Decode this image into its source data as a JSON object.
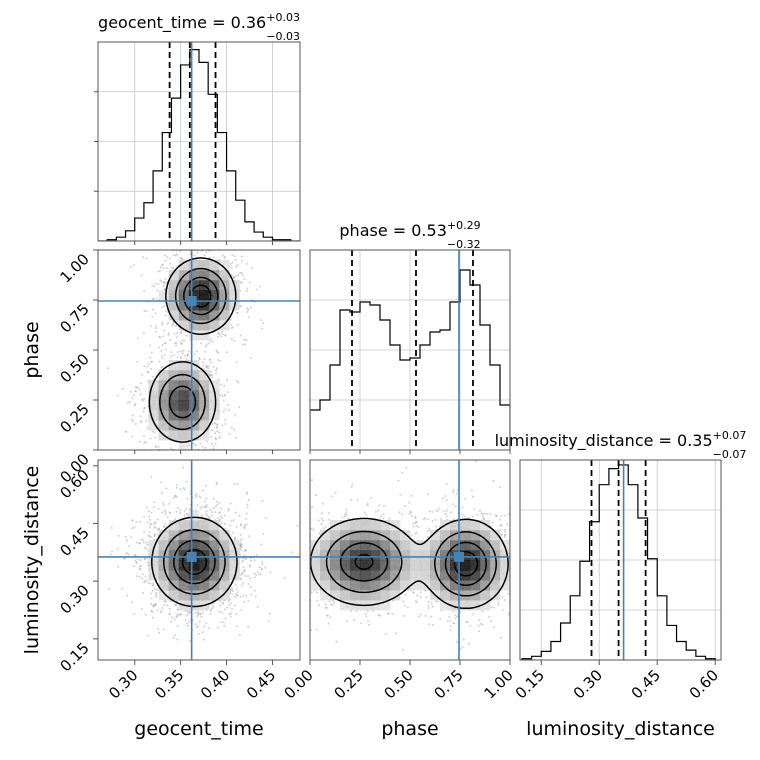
{
  "chart_data": {
    "type": "corner",
    "parameters": [
      "geocent_time",
      "phase",
      "luminosity_distance"
    ],
    "truth_color": "#4682b4",
    "quantile_style": "dashed",
    "grid": true,
    "marginals": [
      {
        "parameter": "geocent_time",
        "title_main": "geocent_time = 0.36",
        "title_plus": "+0.03",
        "title_minus": "−0.03",
        "range": [
          0.26,
          0.48
        ],
        "truth": 0.362,
        "quantiles": [
          0.338,
          0.36,
          0.388
        ],
        "hist_edges": [
          0.26,
          0.27,
          0.28,
          0.29,
          0.3,
          0.31,
          0.32,
          0.33,
          0.34,
          0.35,
          0.36,
          0.37,
          0.38,
          0.39,
          0.4,
          0.41,
          0.42,
          0.43,
          0.44,
          0.45,
          0.46,
          0.47,
          0.48
        ],
        "hist_counts": [
          0,
          1,
          3,
          8,
          18,
          30,
          55,
          85,
          112,
          138,
          150,
          140,
          115,
          85,
          55,
          32,
          15,
          7,
          3,
          1,
          1,
          0
        ],
        "hist_max": 156
      },
      {
        "parameter": "phase",
        "title_main": "phase = 0.53",
        "title_plus": "+0.29",
        "title_minus": "−0.32",
        "range": [
          0.0,
          1.0
        ],
        "truth": 0.745,
        "quantiles": [
          0.21,
          0.53,
          0.815
        ],
        "hist_edges": [
          0,
          0.05,
          0.1,
          0.15,
          0.2,
          0.25,
          0.3,
          0.35,
          0.4,
          0.45,
          0.5,
          0.55,
          0.6,
          0.65,
          0.7,
          0.75,
          0.8,
          0.85,
          0.9,
          0.95,
          1.0
        ],
        "hist_counts": [
          40,
          50,
          85,
          140,
          138,
          148,
          145,
          130,
          105,
          90,
          92,
          105,
          118,
          120,
          148,
          180,
          165,
          125,
          85,
          45
        ],
        "hist_max": 200
      },
      {
        "parameter": "luminosity_distance",
        "title_main": "luminosity_distance = 0.35",
        "title_plus": "+0.07",
        "title_minus": "−0.07",
        "range": [
          0.095,
          0.615
        ],
        "truth": 0.363,
        "quantiles": [
          0.28,
          0.35,
          0.42
        ],
        "hist_edges": [
          0.1,
          0.125,
          0.15,
          0.175,
          0.2,
          0.225,
          0.25,
          0.275,
          0.3,
          0.325,
          0.35,
          0.375,
          0.4,
          0.425,
          0.45,
          0.475,
          0.5,
          0.525,
          0.55,
          0.575,
          0.6
        ],
        "hist_counts": [
          1,
          3,
          7,
          15,
          30,
          52,
          80,
          112,
          142,
          155,
          158,
          142,
          115,
          82,
          52,
          28,
          15,
          8,
          3,
          1
        ],
        "hist_max": 162
      }
    ],
    "joint": [
      {
        "x": "geocent_time",
        "y": "phase",
        "truth": [
          0.362,
          0.745
        ],
        "modes": [
          {
            "x": 0.372,
            "y": 0.77,
            "sx": 0.018,
            "sy": 0.09,
            "w": 1.0
          },
          {
            "x": 0.352,
            "y": 0.24,
            "sx": 0.018,
            "sy": 0.1,
            "w": 0.8
          }
        ]
      },
      {
        "x": "geocent_time",
        "y": "luminosity_distance",
        "truth": [
          0.362,
          0.363
        ],
        "modes": [
          {
            "x": 0.365,
            "y": 0.35,
            "sx": 0.022,
            "sy": 0.055,
            "w": 1.0
          }
        ]
      },
      {
        "x": "phase",
        "y": "luminosity_distance",
        "truth": [
          0.745,
          0.363
        ],
        "modes": [
          {
            "x": 0.27,
            "y": 0.35,
            "sx": 0.13,
            "sy": 0.055,
            "w": 0.9
          },
          {
            "x": 0.78,
            "y": 0.345,
            "sx": 0.1,
            "sy": 0.055,
            "w": 1.0
          }
        ]
      }
    ],
    "ticks": {
      "geocent_time": [
        {
          "v": 0.3,
          "label": "0.30"
        },
        {
          "v": 0.35,
          "label": "0.35"
        },
        {
          "v": 0.4,
          "label": "0.40"
        },
        {
          "v": 0.45,
          "label": "0.45"
        }
      ],
      "phase": [
        {
          "v": 0.0,
          "label": "0.00"
        },
        {
          "v": 0.25,
          "label": "0.25"
        },
        {
          "v": 0.5,
          "label": "0.50"
        },
        {
          "v": 0.75,
          "label": "0.75"
        },
        {
          "v": 1.0,
          "label": "1.00"
        }
      ],
      "luminosity_distance": [
        {
          "v": 0.15,
          "label": "0.15"
        },
        {
          "v": 0.3,
          "label": "0.30"
        },
        {
          "v": 0.45,
          "label": "0.45"
        },
        {
          "v": 0.6,
          "label": "0.60"
        }
      ]
    },
    "xlabels": [
      "geocent_time",
      "phase",
      "luminosity_distance"
    ],
    "ylabels": [
      "",
      "phase",
      "luminosity_distance"
    ]
  }
}
